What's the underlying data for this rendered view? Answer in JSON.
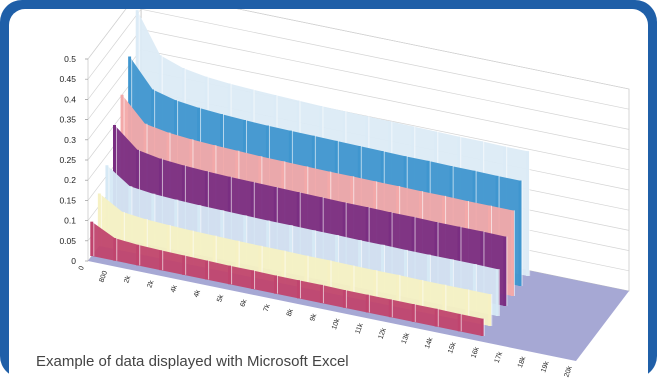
{
  "caption": "Example of data displayed with Microsoft Excel",
  "chart_data": {
    "type": "area",
    "title": "",
    "xlabel": "",
    "ylabel": "",
    "ylim": [
      0,
      0.5
    ],
    "y_ticks": [
      "0",
      "0.05",
      "0.1",
      "0.15",
      "0.2",
      "0.25",
      "0.3",
      "0.35",
      "0.4",
      "0.45",
      "0.5"
    ],
    "x_ticks": [
      "0",
      "800",
      "2k",
      "2k",
      "4k",
      "4k",
      "5k",
      "6k",
      "7k",
      "8k",
      "9k",
      "10k",
      "11k",
      "12k",
      "13k",
      "14k",
      "15k",
      "16k",
      "17k",
      "18k",
      "19k",
      "20k"
    ],
    "grid": true,
    "legend": "none",
    "floor_color": "#a6a8d4",
    "series": [
      {
        "color": "#c0446e",
        "values": [
          0.085,
          0.056,
          0.051,
          0.049,
          0.048,
          0.047,
          0.046,
          0.046,
          0.045,
          0.045,
          0.045,
          0.044,
          0.044,
          0.044,
          0.044,
          0.044,
          0.043,
          0.043
        ]
      },
      {
        "color": "#f6f1c3",
        "values": [
          0.13,
          0.096,
          0.09,
          0.087,
          0.085,
          0.084,
          0.083,
          0.082,
          0.082,
          0.081,
          0.081,
          0.08,
          0.08,
          0.08,
          0.079,
          0.079,
          0.079,
          0.079
        ]
      },
      {
        "color": "#d6e9f5",
        "values": [
          0.175,
          0.135,
          0.128,
          0.125,
          0.123,
          0.122,
          0.121,
          0.12,
          0.12,
          0.119,
          0.119,
          0.118,
          0.118,
          0.117,
          0.117,
          0.117,
          0.117,
          0.116
        ]
      },
      {
        "color": "#7a2e82",
        "values": [
          0.25,
          0.2,
          0.19,
          0.185,
          0.182,
          0.18,
          0.179,
          0.178,
          0.177,
          0.176,
          0.175,
          0.175,
          0.174,
          0.174,
          0.173,
          0.173,
          0.173,
          0.172
        ]
      },
      {
        "color": "#f3a9a9",
        "values": [
          0.3,
          0.24,
          0.23,
          0.225,
          0.222,
          0.22,
          0.218,
          0.217,
          0.216,
          0.215,
          0.215,
          0.214,
          0.214,
          0.213,
          0.213,
          0.212,
          0.212,
          0.212
        ]
      },
      {
        "color": "#3f96cf",
        "values": [
          0.37,
          0.3,
          0.285,
          0.278,
          0.274,
          0.271,
          0.269,
          0.268,
          0.267,
          0.266,
          0.265,
          0.264,
          0.263,
          0.263,
          0.262,
          0.262,
          0.261,
          0.261
        ]
      },
      {
        "color": "#dcebf6",
        "values": [
          0.46,
          0.36,
          0.34,
          0.33,
          0.325,
          0.322,
          0.32,
          0.318,
          0.316,
          0.315,
          0.314,
          0.313,
          0.312,
          0.311,
          0.31,
          0.31,
          0.309,
          0.309
        ]
      }
    ]
  }
}
